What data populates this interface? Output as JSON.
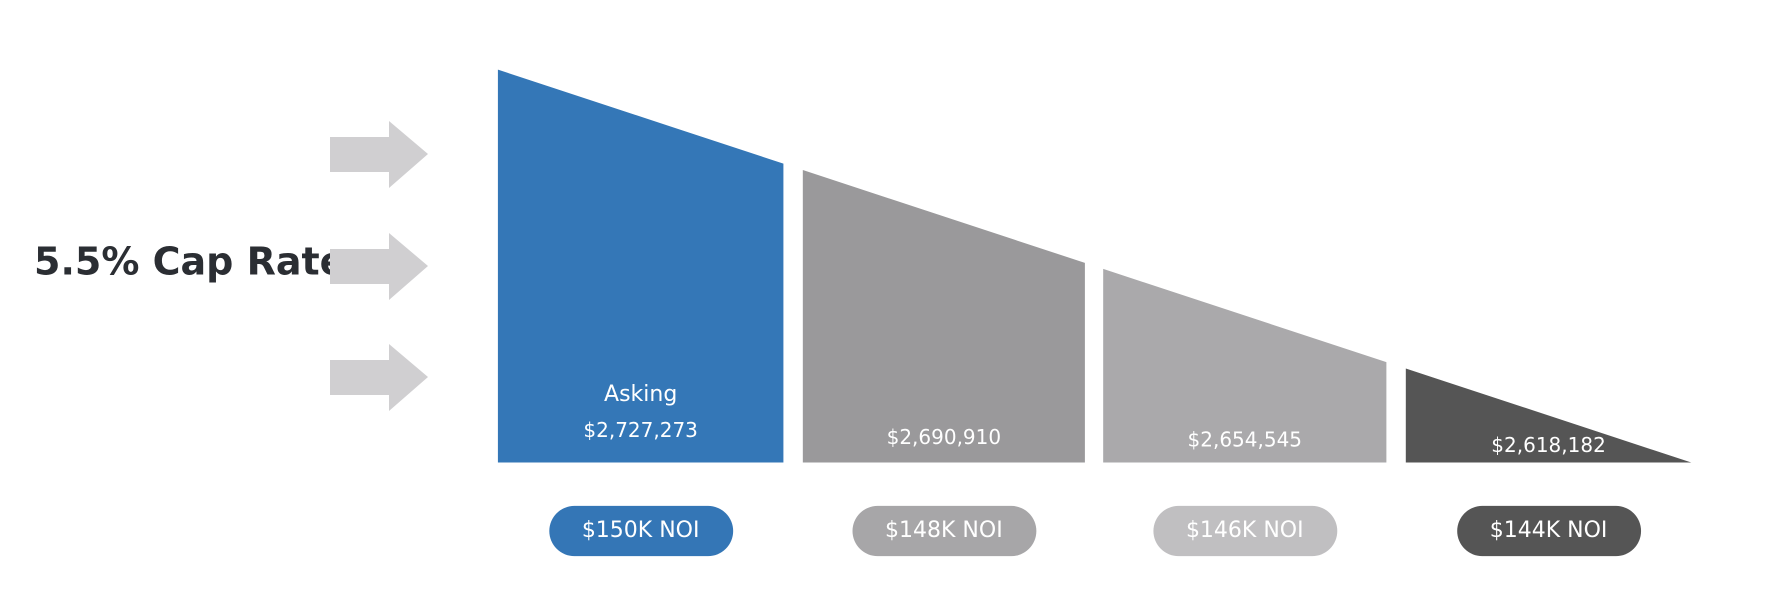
{
  "title": "5.5% Cap Rate",
  "segments": [
    {
      "label": "Asking",
      "price": "$2,727,273",
      "noi": "$150K NOI",
      "color": "#3477b7",
      "pill_color": "#3476b6"
    },
    {
      "price": "$2,690,910",
      "noi": "$148K NOI",
      "color": "#9a999b",
      "pill_color": "#a7a6a8"
    },
    {
      "price": "$2,654,545",
      "noi": "$146K NOI",
      "color": "#aaa9ab",
      "pill_color": "#c0bfc1"
    },
    {
      "price": "$2,618,182",
      "noi": "$144K NOI",
      "color": "#555555",
      "pill_color": "#555555"
    }
  ]
}
